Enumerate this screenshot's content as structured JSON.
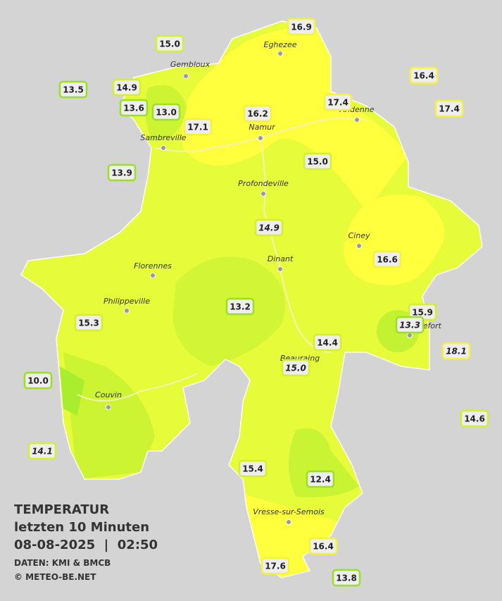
{
  "title": {
    "lines": [
      "TEMPERATUR",
      "letzten 10 Minuten",
      "08-08-2025  |  02:50"
    ],
    "source": "DATEN: KMI & BMCB",
    "copyright": "© METEO-BE.NET"
  },
  "cities": [
    "Eghezee",
    "Gembloux",
    "Andenne",
    "Namur",
    "Sambreville",
    "Profondeville",
    "Ciney",
    "Dinant",
    "Florennes",
    "Philippeville",
    "Couvin",
    "Rochefort",
    "Beauraing",
    "Vresse-sur-Semois"
  ],
  "stations": [
    {
      "label": "16.9"
    },
    {
      "label": "15.0"
    },
    {
      "label": "16.4"
    },
    {
      "label": "13.5"
    },
    {
      "label": "14.9"
    },
    {
      "label": "13.6"
    },
    {
      "label": "13.0"
    },
    {
      "label": "16.2"
    },
    {
      "label": "17.4"
    },
    {
      "label": "17.4"
    },
    {
      "label": "17.1"
    },
    {
      "label": "13.9"
    },
    {
      "label": "15.0"
    },
    {
      "label": "14.9",
      "italic": true
    },
    {
      "label": "16.6"
    },
    {
      "label": "13.2"
    },
    {
      "label": "15.9"
    },
    {
      "label": "13.3",
      "italic": true
    },
    {
      "label": "15.3"
    },
    {
      "label": "14.4"
    },
    {
      "label": "18.1",
      "italic": true
    },
    {
      "label": "15.0",
      "italic": true
    },
    {
      "label": "10.0"
    },
    {
      "label": "14.6"
    },
    {
      "label": "14.1",
      "italic": true
    },
    {
      "label": "15.4"
    },
    {
      "label": "12.4"
    },
    {
      "label": "16.4"
    },
    {
      "label": "17.6"
    },
    {
      "label": "13.8"
    }
  ]
}
